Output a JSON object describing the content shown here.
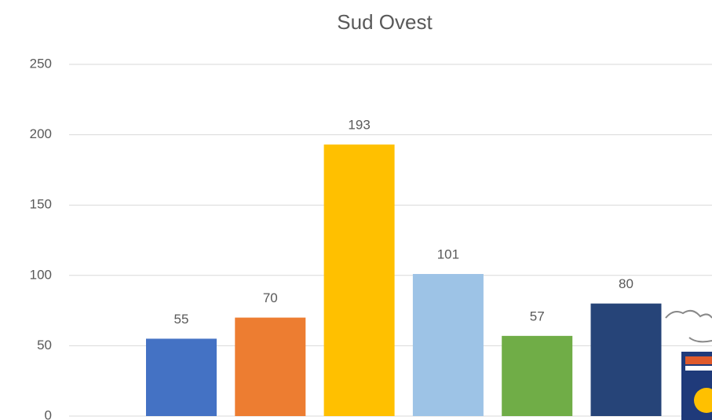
{
  "chart_data": {
    "type": "bar",
    "title": "Sud Ovest",
    "categories": [
      null,
      null,
      null,
      null,
      null,
      null
    ],
    "values": [
      55,
      70,
      193,
      101,
      57,
      80
    ],
    "colors": [
      "#4472c4",
      "#ed7d31",
      "#ffc000",
      "#9dc3e6",
      "#70ad47",
      "#264478"
    ],
    "ylim": [
      0,
      250
    ],
    "yticks": [
      0,
      50,
      100,
      150,
      200,
      250
    ],
    "grid": true,
    "data_labels": true
  }
}
